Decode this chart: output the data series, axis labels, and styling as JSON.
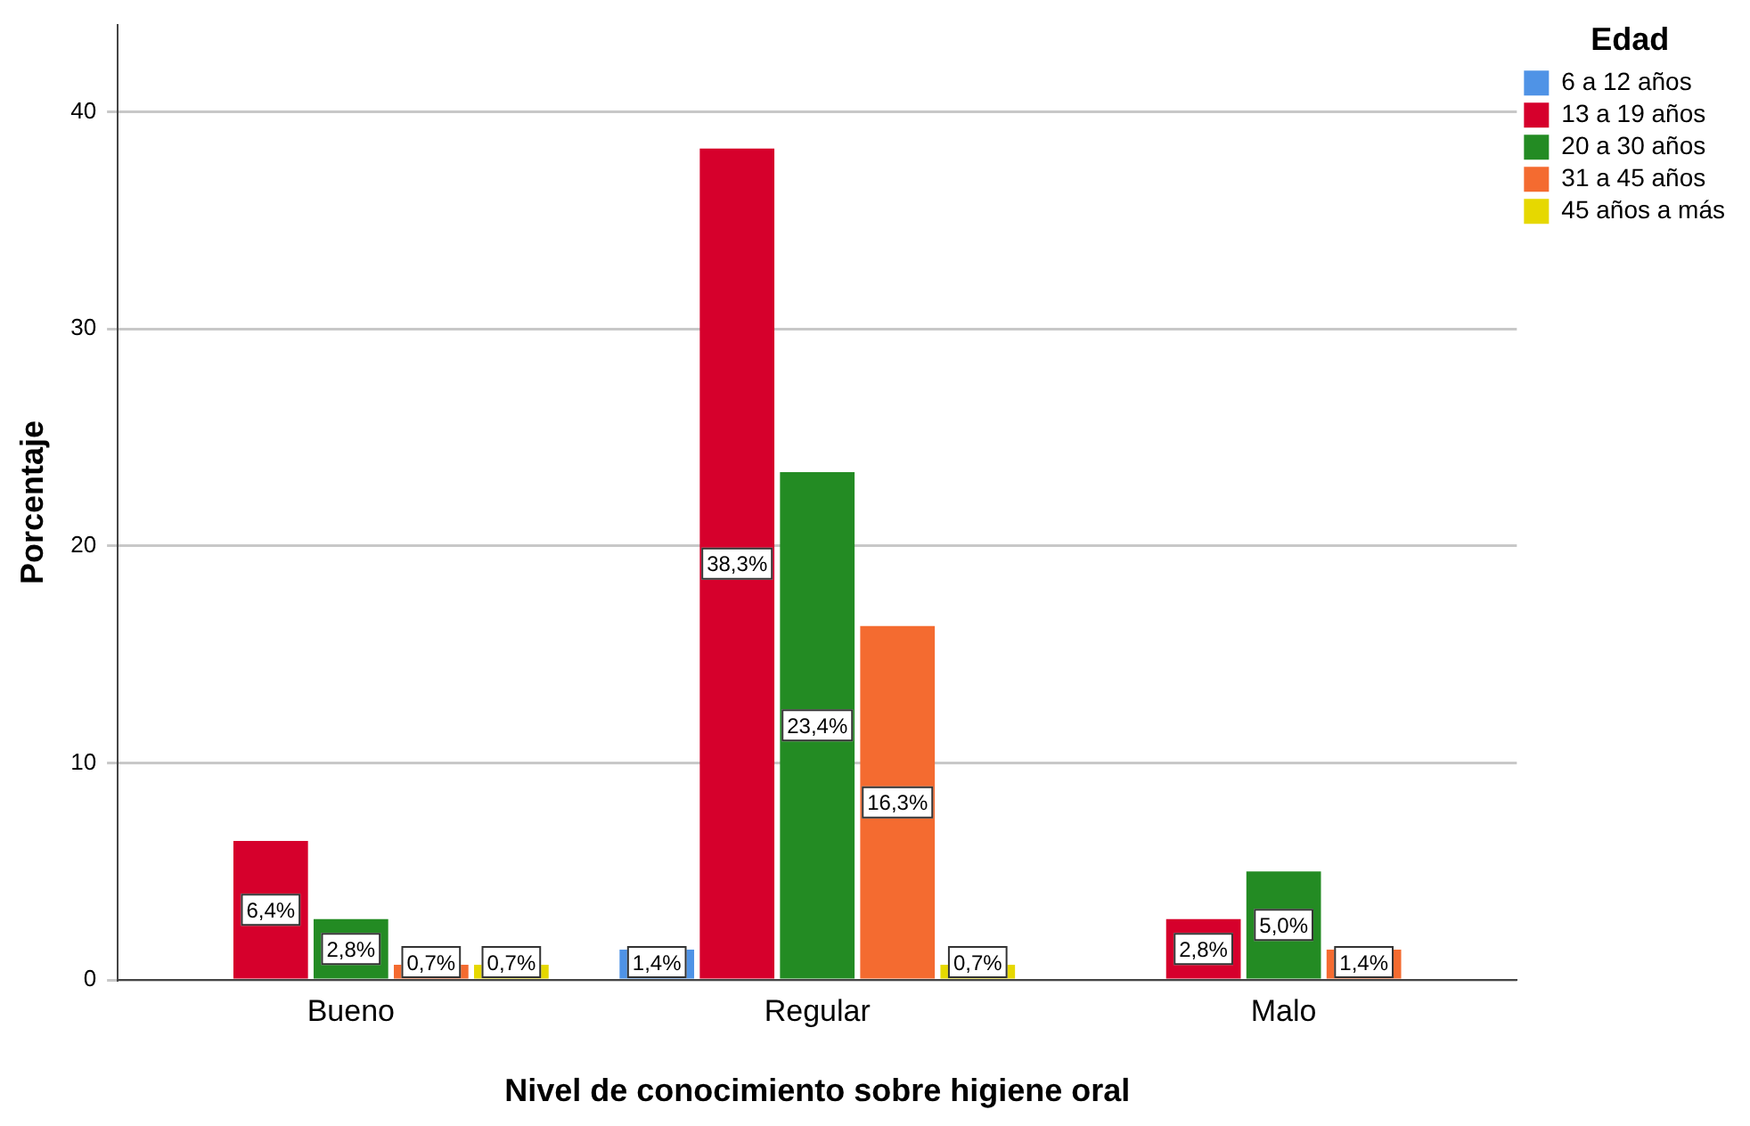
{
  "chart_data": {
    "type": "bar",
    "xlabel": "Nivel de conocimiento sobre higiene oral",
    "ylabel": "Porcentaje",
    "legend_title": "Edad",
    "legend": "top right",
    "grid": "y",
    "categories": [
      "Bueno",
      "Regular",
      "Malo"
    ],
    "ylim": [
      0,
      44
    ],
    "yticks": [
      0,
      10,
      20,
      30,
      40
    ],
    "series": [
      {
        "name": "6 a 12 años",
        "color": "#4f93e6",
        "values": [
          null,
          1.4,
          null
        ],
        "value_labels": [
          null,
          "1,4%",
          null
        ]
      },
      {
        "name": "13 a 19 años",
        "color": "#d6002c",
        "values": [
          6.4,
          38.3,
          2.8
        ],
        "value_labels": [
          "6,4%",
          "38,3%",
          "2,8%"
        ]
      },
      {
        "name": "20 a 30 años",
        "color": "#238b23",
        "values": [
          2.8,
          23.4,
          5.0
        ],
        "value_labels": [
          "2,8%",
          "23,4%",
          "5,0%"
        ]
      },
      {
        "name": "31 a 45 años",
        "color": "#f46b30",
        "values": [
          0.7,
          16.3,
          1.4
        ],
        "value_labels": [
          "0,7%",
          "16,3%",
          "1,4%"
        ]
      },
      {
        "name": "45 años a más",
        "color": "#e6d800",
        "values": [
          0.7,
          0.7,
          null
        ],
        "value_labels": [
          "0,7%",
          "0,7%",
          null
        ]
      }
    ]
  }
}
